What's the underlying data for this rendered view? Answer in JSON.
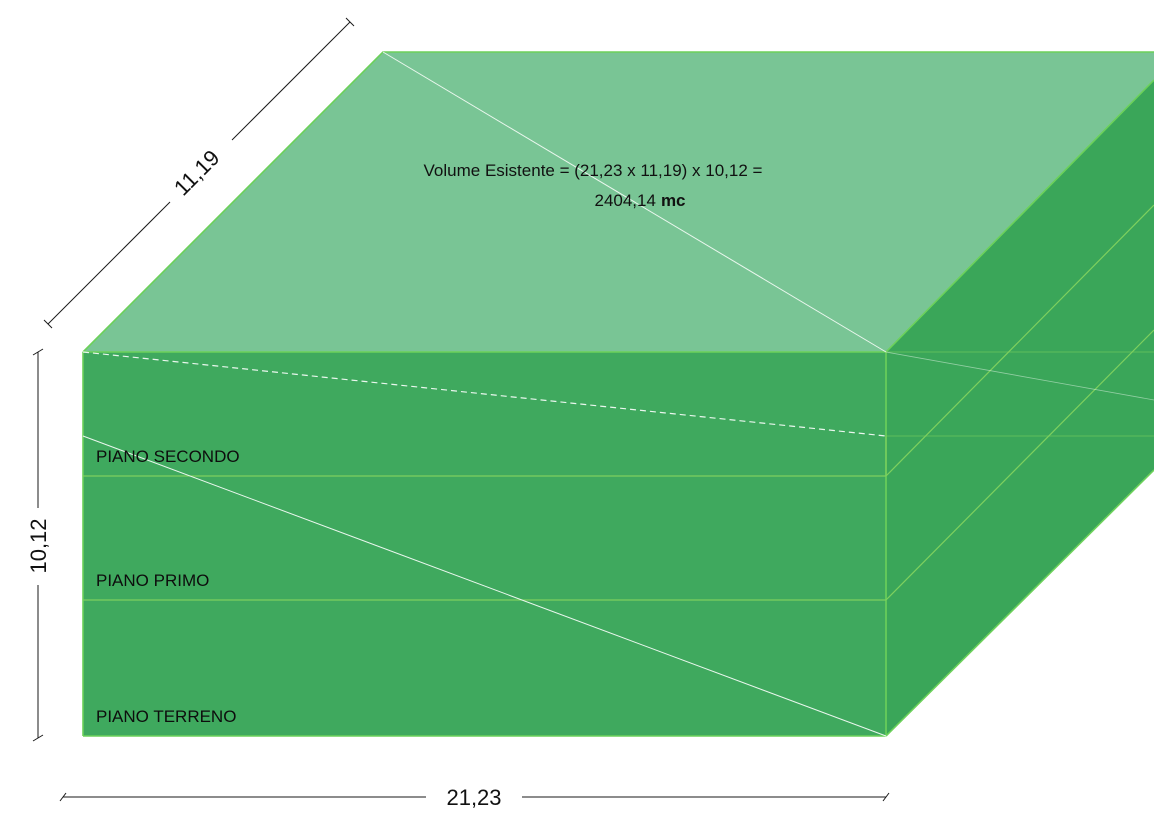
{
  "colors": {
    "top_face": "#79c595",
    "front_face": "#3fa95e",
    "side_face": "#3aa659",
    "edge": "#6cd15a",
    "floor_line": "#7ed05e",
    "diagonal": "#eaf7ee",
    "dimension_line": "#1a1a1a"
  },
  "dimensions": {
    "depth": "11,19",
    "height": "10,12",
    "width": "21,23"
  },
  "volume": {
    "line1": "Volume Esistente = (21,23 x 11,19) x 10,12 =",
    "value": "2404,14",
    "unit": "mc"
  },
  "floors": [
    {
      "label": "PIANO SECONDO"
    },
    {
      "label": "PIANO PRIMO"
    },
    {
      "label": "PIANO TERRENO"
    }
  ]
}
